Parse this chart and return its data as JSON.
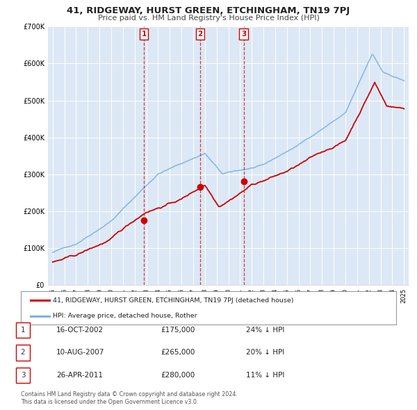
{
  "title": "41, RIDGEWAY, HURST GREEN, ETCHINGHAM, TN19 7PJ",
  "subtitle": "Price paid vs. HM Land Registry's House Price Index (HPI)",
  "background_color": "#ffffff",
  "plot_bg_color": "#dce8f5",
  "grid_color": "#ffffff",
  "sale_color": "#cc0000",
  "hpi_color": "#7fb3e0",
  "transactions": [
    {
      "label": "1",
      "date": "2002-10-16",
      "price": 175000,
      "pct": "24%",
      "x": 2002.792
    },
    {
      "label": "2",
      "date": "2007-08-10",
      "price": 265000,
      "pct": "20%",
      "x": 2007.608
    },
    {
      "label": "3",
      "date": "2011-04-26",
      "price": 280000,
      "pct": "11%",
      "x": 2011.319
    }
  ],
  "legend_entries": [
    "41, RIDGEWAY, HURST GREEN, ETCHINGHAM, TN19 7PJ (detached house)",
    "HPI: Average price, detached house, Rother"
  ],
  "table_rows": [
    [
      "1",
      "16-OCT-2002",
      "£175,000",
      "24% ↓ HPI"
    ],
    [
      "2",
      "10-AUG-2007",
      "£265,000",
      "20% ↓ HPI"
    ],
    [
      "3",
      "26-APR-2011",
      "£280,000",
      "11% ↓ HPI"
    ]
  ],
  "footnote1": "Contains HM Land Registry data © Crown copyright and database right 2024.",
  "footnote2": "This data is licensed under the Open Government Licence v3.0.",
  "ylim": [
    0,
    700000
  ],
  "yticks": [
    0,
    100000,
    200000,
    300000,
    400000,
    500000,
    600000,
    700000
  ],
  "ytick_labels": [
    "£0",
    "£100K",
    "£200K",
    "£300K",
    "£400K",
    "£500K",
    "£600K",
    "£700K"
  ],
  "xlim_start": 1994.6,
  "xlim_end": 2025.4,
  "xtick_years": [
    1995,
    1996,
    1997,
    1998,
    1999,
    2000,
    2001,
    2002,
    2003,
    2004,
    2005,
    2006,
    2007,
    2008,
    2009,
    2010,
    2011,
    2012,
    2013,
    2014,
    2015,
    2016,
    2017,
    2018,
    2019,
    2020,
    2021,
    2022,
    2023,
    2024,
    2025
  ]
}
